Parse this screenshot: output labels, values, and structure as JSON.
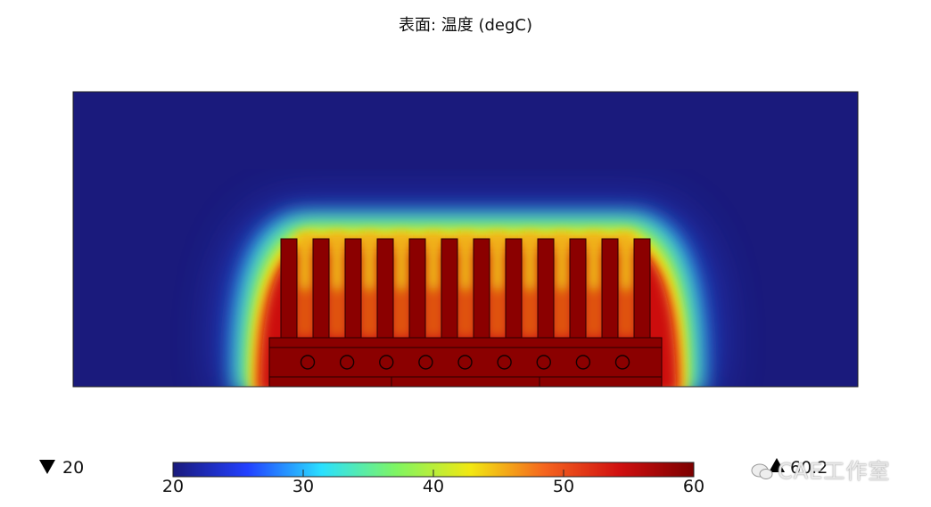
{
  "title": "表面: 温度 (degC)",
  "watermark": "CAE工作室",
  "chart_data": {
    "type": "heatmap",
    "title": "表面: 温度 (degC)",
    "quantity": "温度",
    "unit": "degC",
    "colorbar": {
      "min": 20,
      "max": 60,
      "ticks": [
        20,
        30,
        40,
        50,
        60
      ],
      "tick_labels": [
        "20",
        "30",
        "40",
        "50",
        "60"
      ],
      "colormap": "rainbow",
      "colors": [
        "#1a1a7c",
        "#2240ff",
        "#2ae0ff",
        "#7ff562",
        "#f2e812",
        "#f5641e",
        "#d01010",
        "#7c0000"
      ]
    },
    "min_marker": "20",
    "max_marker": "60.2",
    "heat_sink": {
      "fins": 12,
      "heat_pipes": 9
    }
  }
}
